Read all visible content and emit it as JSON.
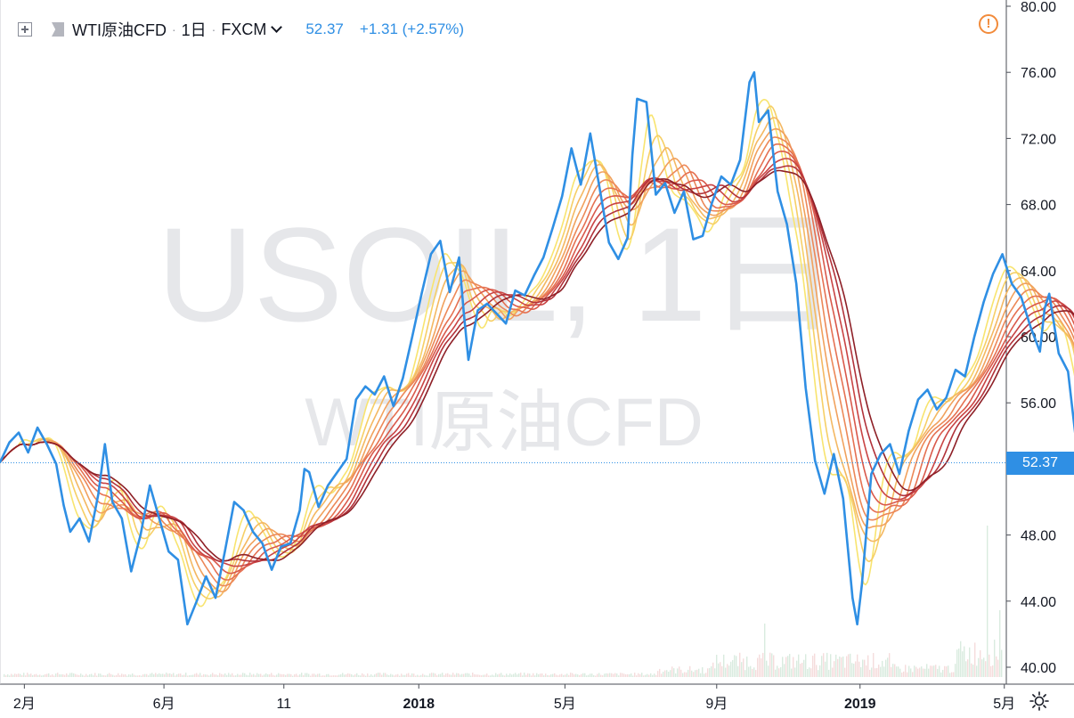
{
  "legend": {
    "symbol": "WTI原油CFD",
    "interval": "1日",
    "exchange": "FXCM",
    "last_price": "52.37",
    "change": "+1.31 (+2.57%)"
  },
  "watermark": {
    "line1": "USOIL, 1日",
    "line2": "WTI原油CFD"
  },
  "icons": {
    "add": "plus-square-icon",
    "symbol": "symbol-flag-icon",
    "alert": "alert-icon",
    "settings": "settings-icon"
  },
  "colors": {
    "price_line": "#2f8fe4",
    "ribbon": [
      "#f8e46f",
      "#f6cf66",
      "#f4b862",
      "#f1a15d",
      "#ec8858",
      "#e57152",
      "#d9594b",
      "#c94444",
      "#b2323a",
      "#8e2027"
    ],
    "volume": "#d8ebdf",
    "last_price_bg": "#2f8fe4"
  },
  "chart_data": {
    "type": "line",
    "y_axis": {
      "min": 39.2,
      "max": 80.4,
      "ticks": [
        "80.00",
        "76.00",
        "72.00",
        "68.00",
        "64.00",
        "60.00",
        "56.00",
        "52.00",
        "48.00",
        "44.00",
        "40.00"
      ],
      "position": "right"
    },
    "x_axis": {
      "ticks": [
        {
          "label": "2月",
          "x": 0.026
        },
        {
          "label": "6月",
          "x": 0.175
        },
        {
          "label": "11",
          "x": 0.303
        },
        {
          "label": "2018",
          "x": 0.447
        },
        {
          "label": "5月",
          "x": 0.603
        },
        {
          "label": "9月",
          "x": 0.765
        },
        {
          "label": "2019",
          "x": 0.918
        },
        {
          "label": "5月",
          "x": 1.072
        }
      ]
    },
    "last_price": 52.37,
    "series": [
      {
        "values": [
          [
            0,
            52.4
          ],
          [
            0.01,
            53.6
          ],
          [
            0.02,
            54.2
          ],
          [
            0.03,
            53.0
          ],
          [
            0.04,
            54.5
          ],
          [
            0.05,
            53.5
          ],
          [
            0.06,
            52.3
          ],
          [
            0.068,
            49.8
          ],
          [
            0.075,
            48.2
          ],
          [
            0.085,
            49.0
          ],
          [
            0.095,
            47.6
          ],
          [
            0.105,
            50.5
          ],
          [
            0.112,
            53.5
          ],
          [
            0.12,
            50.0
          ],
          [
            0.13,
            49.0
          ],
          [
            0.14,
            45.8
          ],
          [
            0.15,
            48.0
          ],
          [
            0.16,
            51.0
          ],
          [
            0.17,
            49.0
          ],
          [
            0.18,
            47.0
          ],
          [
            0.19,
            46.5
          ],
          [
            0.2,
            42.6
          ],
          [
            0.21,
            44.0
          ],
          [
            0.22,
            45.5
          ],
          [
            0.23,
            44.2
          ],
          [
            0.24,
            47.0
          ],
          [
            0.25,
            50.0
          ],
          [
            0.26,
            49.5
          ],
          [
            0.27,
            48.2
          ],
          [
            0.28,
            47.5
          ],
          [
            0.29,
            45.9
          ],
          [
            0.3,
            47.3
          ],
          [
            0.31,
            47.5
          ],
          [
            0.32,
            49.5
          ],
          [
            0.325,
            52.0
          ],
          [
            0.33,
            51.8
          ],
          [
            0.34,
            49.7
          ],
          [
            0.35,
            51.0
          ],
          [
            0.36,
            51.8
          ],
          [
            0.37,
            52.6
          ],
          [
            0.38,
            56.2
          ],
          [
            0.39,
            57.0
          ],
          [
            0.4,
            56.5
          ],
          [
            0.41,
            57.6
          ],
          [
            0.42,
            55.8
          ],
          [
            0.43,
            57.5
          ],
          [
            0.44,
            60.0
          ],
          [
            0.45,
            62.6
          ],
          [
            0.46,
            65.0
          ],
          [
            0.47,
            65.8
          ],
          [
            0.48,
            62.7
          ],
          [
            0.49,
            64.8
          ],
          [
            0.495,
            61.5
          ],
          [
            0.5,
            58.6
          ],
          [
            0.51,
            61.6
          ],
          [
            0.52,
            62.0
          ],
          [
            0.53,
            61.4
          ],
          [
            0.54,
            60.8
          ],
          [
            0.55,
            62.8
          ],
          [
            0.56,
            62.5
          ],
          [
            0.57,
            63.7
          ],
          [
            0.58,
            64.8
          ],
          [
            0.59,
            66.6
          ],
          [
            0.6,
            68.5
          ],
          [
            0.61,
            71.4
          ],
          [
            0.62,
            69.2
          ],
          [
            0.63,
            72.3
          ],
          [
            0.64,
            69.0
          ],
          [
            0.65,
            65.7
          ],
          [
            0.66,
            64.7
          ],
          [
            0.67,
            66.0
          ],
          [
            0.675,
            71.0
          ],
          [
            0.68,
            74.4
          ],
          [
            0.69,
            74.2
          ],
          [
            0.7,
            68.6
          ],
          [
            0.71,
            69.3
          ],
          [
            0.72,
            67.5
          ],
          [
            0.73,
            68.8
          ],
          [
            0.74,
            65.9
          ],
          [
            0.75,
            66.1
          ],
          [
            0.76,
            68.1
          ],
          [
            0.77,
            69.7
          ],
          [
            0.78,
            69.2
          ],
          [
            0.79,
            70.7
          ],
          [
            0.8,
            75.4
          ],
          [
            0.805,
            76.0
          ],
          [
            0.81,
            73.0
          ],
          [
            0.82,
            73.7
          ],
          [
            0.83,
            68.8
          ],
          [
            0.84,
            66.8
          ],
          [
            0.85,
            63.2
          ],
          [
            0.86,
            56.9
          ],
          [
            0.87,
            52.5
          ],
          [
            0.88,
            50.5
          ],
          [
            0.89,
            52.9
          ],
          [
            0.9,
            50.2
          ],
          [
            0.91,
            44.2
          ],
          [
            0.915,
            42.6
          ],
          [
            0.92,
            45.0
          ],
          [
            0.93,
            51.7
          ],
          [
            0.94,
            52.9
          ],
          [
            0.95,
            53.5
          ],
          [
            0.96,
            51.7
          ],
          [
            0.97,
            54.3
          ],
          [
            0.98,
            56.2
          ],
          [
            0.99,
            56.8
          ],
          [
            1.0,
            55.6
          ],
          [
            1.01,
            56.3
          ],
          [
            1.02,
            58.0
          ],
          [
            1.03,
            57.6
          ],
          [
            1.04,
            60.0
          ],
          [
            1.05,
            62.1
          ],
          [
            1.06,
            63.8
          ],
          [
            1.07,
            65.0
          ],
          [
            1.08,
            63.2
          ],
          [
            1.09,
            62.4
          ],
          [
            1.1,
            60.6
          ],
          [
            1.11,
            59.1
          ],
          [
            1.115,
            61.7
          ],
          [
            1.12,
            62.6
          ],
          [
            1.13,
            59.0
          ],
          [
            1.14,
            57.9
          ],
          [
            1.15,
            53.0
          ],
          [
            1.16,
            53.8
          ],
          [
            1.165,
            51.0
          ],
          [
            1.17,
            52.4
          ]
        ]
      }
    ]
  }
}
